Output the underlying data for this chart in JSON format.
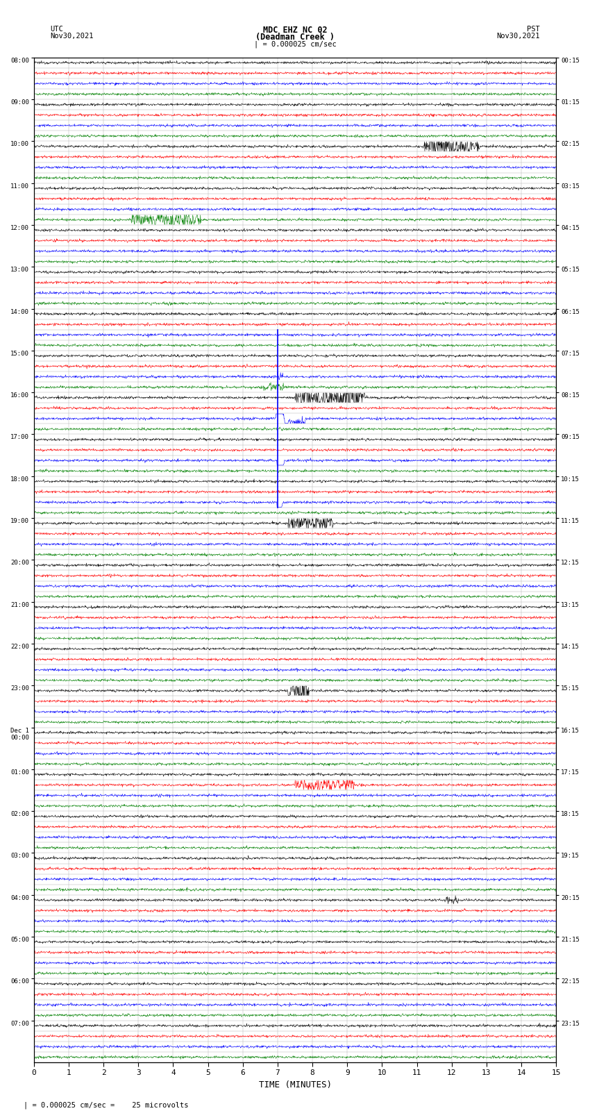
{
  "title_line1": "MDC EHZ NC 02",
  "title_line2": "(Deadman Creek )",
  "title_scale": "| = 0.000025 cm/sec",
  "left_header1": "UTC",
  "left_header2": "Nov30,2021",
  "right_header1": "PST",
  "right_header2": "Nov30,2021",
  "xlabel": "TIME (MINUTES)",
  "footer": "| = 0.000025 cm/sec =    25 microvolts",
  "xlim": [
    0,
    15
  ],
  "xticks": [
    0,
    1,
    2,
    3,
    4,
    5,
    6,
    7,
    8,
    9,
    10,
    11,
    12,
    13,
    14,
    15
  ],
  "background_color": "white",
  "grid_color": "#aaaaaa",
  "noise_scale": 0.06,
  "utc_labels": [
    "08:00",
    "09:00",
    "10:00",
    "11:00",
    "12:00",
    "13:00",
    "14:00",
    "15:00",
    "16:00",
    "17:00",
    "18:00",
    "19:00",
    "20:00",
    "21:00",
    "22:00",
    "23:00",
    "Dec 1\n00:00",
    "01:00",
    "02:00",
    "03:00",
    "04:00",
    "05:00",
    "06:00",
    "07:00"
  ],
  "pst_labels": [
    "00:15",
    "01:15",
    "02:15",
    "03:15",
    "04:15",
    "05:15",
    "06:15",
    "07:15",
    "08:15",
    "09:15",
    "10:15",
    "11:15",
    "12:15",
    "13:15",
    "14:15",
    "15:15",
    "16:15",
    "17:15",
    "18:15",
    "19:15",
    "20:15",
    "21:15",
    "22:15",
    "23:15"
  ],
  "row_colors": [
    "black",
    "red",
    "blue",
    "green"
  ],
  "num_hour_blocks": 24,
  "traces_per_block": 4
}
